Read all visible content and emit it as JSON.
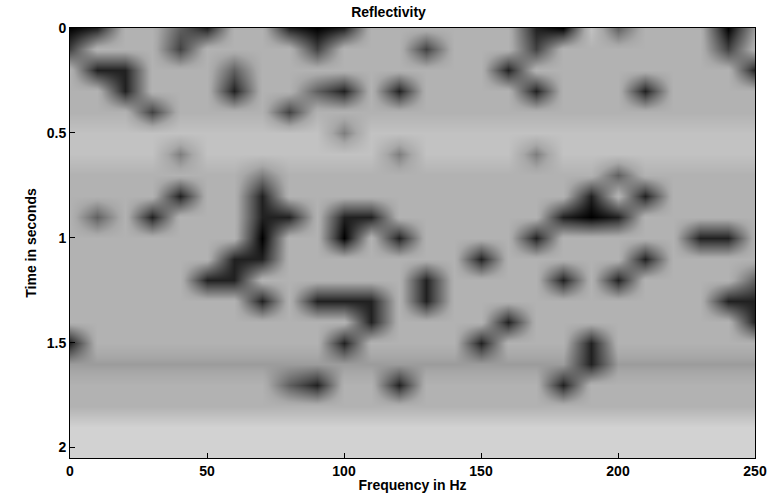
{
  "chart_data": {
    "type": "heatmap",
    "title": "Reflectivity",
    "x_label": "Frequency in Hz",
    "y_label": "Time in seconds",
    "x": [
      0,
      10,
      20,
      30,
      40,
      50,
      60,
      70,
      80,
      90,
      100,
      110,
      120,
      130,
      140,
      150,
      160,
      170,
      180,
      190,
      200,
      210,
      220,
      230,
      240,
      250
    ],
    "y": [
      0,
      0.1,
      0.2,
      0.3,
      0.4,
      0.5,
      0.6,
      0.7,
      0.8,
      0.9,
      1.0,
      1.1,
      1.2,
      1.3,
      1.4,
      1.5,
      1.6,
      1.7,
      1.8,
      1.9,
      2.0
    ],
    "cells": [
      [
        0,
        1,
        6,
        6,
        3,
        1,
        6,
        6,
        1,
        0,
        1,
        6,
        6,
        6,
        6,
        6,
        6,
        1,
        0,
        7,
        3,
        6,
        6,
        6,
        0,
        5
      ],
      [
        2,
        6,
        6,
        6,
        2,
        6,
        6,
        6,
        6,
        2,
        6,
        6,
        6,
        2,
        6,
        6,
        6,
        2,
        6,
        6,
        6,
        6,
        6,
        6,
        2,
        6
      ],
      [
        6,
        1,
        1,
        6,
        6,
        6,
        3,
        6,
        6,
        6,
        6,
        6,
        6,
        6,
        6,
        6,
        1,
        6,
        6,
        6,
        6,
        6,
        6,
        6,
        6,
        1
      ],
      [
        6,
        6,
        1,
        6,
        6,
        6,
        1,
        6,
        6,
        3,
        1,
        6,
        1,
        6,
        6,
        6,
        6,
        1,
        6,
        6,
        6,
        1,
        6,
        6,
        6,
        6
      ],
      [
        6,
        6,
        6,
        2,
        6,
        6,
        6,
        6,
        2,
        6,
        6,
        6,
        6,
        6,
        6,
        6,
        6,
        6,
        6,
        6,
        6,
        6,
        6,
        6,
        6,
        6
      ],
      [
        7,
        7,
        7,
        7,
        7,
        7,
        7,
        7,
        7,
        7,
        4,
        7,
        7,
        7,
        7,
        7,
        7,
        7,
        7,
        7,
        7,
        7,
        7,
        7,
        7,
        7
      ],
      [
        7,
        7,
        7,
        7,
        4,
        7,
        7,
        7,
        7,
        7,
        7,
        7,
        4,
        7,
        7,
        7,
        7,
        4,
        7,
        7,
        7,
        7,
        7,
        7,
        7,
        7
      ],
      [
        6,
        6,
        6,
        6,
        6,
        6,
        6,
        4,
        6,
        6,
        6,
        6,
        6,
        6,
        6,
        6,
        6,
        6,
        6,
        6,
        3,
        6,
        6,
        6,
        6,
        6
      ],
      [
        6,
        6,
        6,
        6,
        1,
        6,
        6,
        1,
        6,
        6,
        6,
        6,
        6,
        6,
        6,
        6,
        6,
        6,
        6,
        1,
        6,
        1,
        6,
        6,
        6,
        6
      ],
      [
        6,
        3,
        6,
        1,
        6,
        6,
        6,
        1,
        1,
        6,
        1,
        1,
        6,
        6,
        6,
        6,
        6,
        6,
        1,
        0,
        1,
        6,
        6,
        6,
        6,
        6
      ],
      [
        6,
        6,
        6,
        6,
        6,
        6,
        6,
        0,
        6,
        6,
        0,
        6,
        1,
        6,
        6,
        6,
        6,
        1,
        6,
        6,
        6,
        6,
        6,
        1,
        1,
        6
      ],
      [
        6,
        6,
        6,
        6,
        6,
        6,
        1,
        1,
        6,
        6,
        6,
        6,
        6,
        6,
        6,
        1,
        6,
        6,
        6,
        6,
        6,
        1,
        6,
        6,
        6,
        6
      ],
      [
        6,
        6,
        6,
        6,
        6,
        1,
        1,
        6,
        6,
        6,
        6,
        6,
        6,
        1,
        6,
        6,
        6,
        6,
        1,
        6,
        1,
        6,
        6,
        6,
        6,
        3
      ],
      [
        6,
        6,
        6,
        6,
        6,
        6,
        6,
        1,
        6,
        1,
        1,
        1,
        6,
        1,
        6,
        6,
        6,
        6,
        6,
        6,
        6,
        6,
        6,
        6,
        1,
        1
      ],
      [
        6,
        6,
        6,
        6,
        6,
        6,
        6,
        6,
        6,
        6,
        6,
        1,
        6,
        6,
        6,
        6,
        1,
        6,
        6,
        6,
        6,
        6,
        6,
        6,
        6,
        1
      ],
      [
        1,
        6,
        6,
        6,
        6,
        6,
        6,
        6,
        6,
        6,
        1,
        6,
        6,
        6,
        6,
        1,
        6,
        6,
        6,
        1,
        6,
        6,
        6,
        6,
        6,
        6
      ],
      [
        5,
        5,
        5,
        5,
        5,
        5,
        5,
        5,
        5,
        5,
        5,
        5,
        5,
        5,
        5,
        5,
        5,
        5,
        5,
        1,
        5,
        5,
        5,
        5,
        5,
        5
      ],
      [
        6,
        6,
        6,
        6,
        6,
        6,
        6,
        6,
        3,
        1,
        6,
        6,
        1,
        6,
        6,
        6,
        6,
        6,
        1,
        6,
        6,
        6,
        6,
        6,
        6,
        6
      ],
      [
        6,
        6,
        6,
        6,
        6,
        6,
        6,
        6,
        6,
        6,
        6,
        6,
        6,
        6,
        6,
        6,
        6,
        6,
        6,
        6,
        6,
        6,
        6,
        6,
        6,
        6
      ],
      [
        8,
        8,
        8,
        8,
        8,
        8,
        8,
        8,
        8,
        8,
        8,
        8,
        8,
        8,
        8,
        8,
        8,
        8,
        8,
        8,
        8,
        8,
        8,
        8,
        8,
        8
      ],
      [
        8,
        8,
        8,
        8,
        8,
        8,
        8,
        8,
        8,
        8,
        8,
        8,
        8,
        8,
        8,
        8,
        8,
        8,
        8,
        8,
        8,
        8,
        8,
        8,
        8,
        8
      ]
    ],
    "zlim": [
      0,
      9
    ],
    "xlim": [
      0,
      250
    ],
    "xticks": [
      0,
      50,
      100,
      150,
      200,
      250
    ],
    "ylim": [
      2.05,
      0
    ],
    "yticks": [
      0,
      0.5,
      1,
      1.5,
      2
    ],
    "grid": false
  }
}
